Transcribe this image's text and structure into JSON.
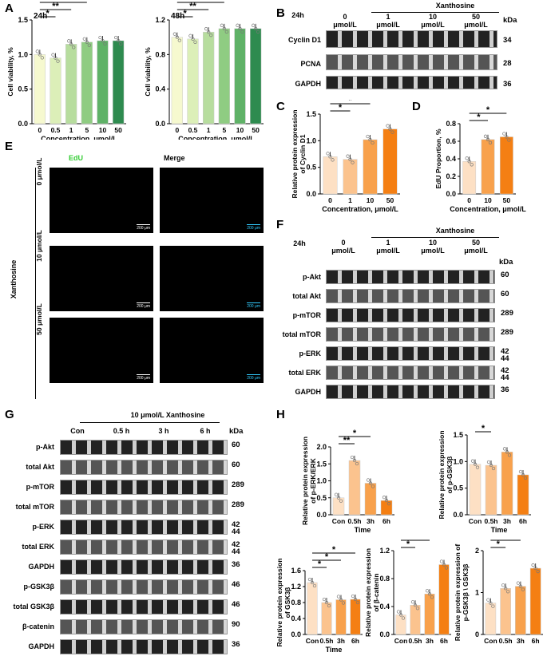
{
  "panels": {
    "A": "A",
    "B": "B",
    "C": "C",
    "D": "D",
    "E": "E",
    "F": "F",
    "G": "G",
    "H": "H"
  },
  "panelA": {
    "left_title": "24h",
    "right_title": "48h",
    "ylabel": "Cell viability, %",
    "xlabel": "Concentration, μmol/L"
  },
  "panelB": {
    "time": "24h",
    "group": "Xanthosine",
    "kda": "kDa",
    "conc": [
      "0\nμmol/L",
      "1\nμmol/L",
      "10\nμmol/L",
      "50\nμmol/L"
    ],
    "rows": [
      {
        "name": "Cyclin D1",
        "kda": "34"
      },
      {
        "name": "PCNA",
        "kda": "28"
      },
      {
        "name": "GAPDH",
        "kda": "36"
      }
    ]
  },
  "panelC": {
    "ylabel": "Relative protein expression of Cyclin D1",
    "xlabel": "Concentration, μmol/L"
  },
  "panelD": {
    "ylabel": "EdU Proportion, %",
    "xlabel": "Concentration, μmol/L"
  },
  "panelE": {
    "col1": "EdU",
    "col2": "Merge",
    "group": "Xanthosine",
    "rows": [
      "0 μmol/L",
      "10 μmol/L",
      "50 μmol/L"
    ],
    "scale": "200 μm"
  },
  "panelF": {
    "time": "24h",
    "group": "Xanthosine",
    "kda": "kDa",
    "conc": [
      "0\nμmol/L",
      "1\nμmol/L",
      "10\nμmol/L",
      "50\nμmol/L"
    ],
    "rows": [
      {
        "name": "p-Akt",
        "kda": "60"
      },
      {
        "name": "total Akt",
        "kda": "60"
      },
      {
        "name": "p-mTOR",
        "kda": "289"
      },
      {
        "name": "total mTOR",
        "kda": "289"
      },
      {
        "name": "p-ERK",
        "kda": "42\n44"
      },
      {
        "name": "total ERK",
        "kda": "42\n44"
      },
      {
        "name": "GAPDH",
        "kda": "36"
      }
    ]
  },
  "panelG": {
    "group": "10 μmol/L Xanthosine",
    "kda": "kDa",
    "times": [
      "Con",
      "0.5 h",
      "3 h",
      "6 h"
    ],
    "rows": [
      {
        "name": "p-Akt",
        "kda": "60"
      },
      {
        "name": "total Akt",
        "kda": "60"
      },
      {
        "name": "p-mTOR",
        "kda": "289"
      },
      {
        "name": "total mTOR",
        "kda": "289"
      },
      {
        "name": "p-ERK",
        "kda": "42\n44"
      },
      {
        "name": "total ERK",
        "kda": "42\n44"
      },
      {
        "name": "GAPDH",
        "kda": "36"
      },
      {
        "name": "p-GSK3β",
        "kda": "46"
      },
      {
        "name": "total GSK3β",
        "kda": "46"
      },
      {
        "name": "β-catenin",
        "kda": "90"
      },
      {
        "name": "GAPDH",
        "kda": "36"
      }
    ]
  },
  "chart_data": [
    {
      "id": "A24",
      "type": "bar",
      "title": "24h",
      "categories": [
        "0",
        "0.5",
        "1",
        "5",
        "10",
        "50"
      ],
      "values": [
        1.0,
        0.95,
        1.15,
        1.18,
        1.2,
        1.2
      ],
      "ylim": [
        0,
        1.5
      ],
      "yticks": [
        "0.0",
        "0.5",
        "1.0",
        "1.5"
      ],
      "ylabel": "Cell viability, %",
      "xlabel": "Concentration, μmol/L",
      "sig": [
        "*",
        "**",
        "***",
        "***"
      ],
      "colors": [
        "#f6f9cf",
        "#dcefb8",
        "#b7dd9e",
        "#8fcc82",
        "#5fb267",
        "#2e8b4f"
      ]
    },
    {
      "id": "A48",
      "type": "bar",
      "title": "48h",
      "categories": [
        "0",
        "0.5",
        "1",
        "5",
        "10",
        "50"
      ],
      "values": [
        1.0,
        0.98,
        1.06,
        1.1,
        1.1,
        1.1
      ],
      "ylim": [
        0,
        1.2
      ],
      "yticks": [
        "0.0",
        "0.4",
        "0.8",
        "1.2"
      ],
      "ylabel": "Cell viability, %",
      "xlabel": "Concentration, μmol/L",
      "sig": [
        "*",
        "**",
        "***",
        "***"
      ],
      "colors": [
        "#f6f9cf",
        "#dcefb8",
        "#b7dd9e",
        "#8fcc82",
        "#5fb267",
        "#2e8b4f"
      ]
    },
    {
      "id": "C",
      "type": "bar",
      "categories": [
        "0",
        "1",
        "10",
        "50"
      ],
      "values": [
        0.7,
        0.65,
        1.02,
        1.22
      ],
      "ylim": [
        0,
        1.5
      ],
      "yticks": [
        "0.0",
        "0.5",
        "1.0",
        "1.5"
      ],
      "ylabel": "Relative protein expression of Cyclin D1",
      "xlabel": "Concentration, μmol/L",
      "sig": [
        "*",
        "*"
      ],
      "colors": [
        "#fde0c4",
        "#fbc38e",
        "#f8a14c",
        "#f47f13"
      ]
    },
    {
      "id": "D",
      "type": "bar",
      "categories": [
        "0",
        "10",
        "50"
      ],
      "values": [
        0.37,
        0.62,
        0.65
      ],
      "ylim": [
        0,
        0.8
      ],
      "yticks": [
        "0.0",
        "0.2",
        "0.4",
        "0.6",
        "0.8"
      ],
      "ylabel": "EdU Proportion, %",
      "xlabel": "Concentration, μmol/L",
      "sig": [
        "*",
        "*"
      ],
      "colors": [
        "#fde0c4",
        "#f8a14c",
        "#f47f13"
      ]
    },
    {
      "id": "H1",
      "type": "bar",
      "categories": [
        "Con",
        "0.5h",
        "3h",
        "6h"
      ],
      "values": [
        0.5,
        1.6,
        0.93,
        0.42
      ],
      "ylim": [
        0,
        2.0
      ],
      "yticks": [
        "0.0",
        "0.5",
        "1.0",
        "1.5",
        "2.0"
      ],
      "ylabel": "Relative protein expression of p-ERK/ERK",
      "xlabel": "Time",
      "sig": [
        "**",
        "*"
      ],
      "colors": [
        "#fde0c4",
        "#fbc38e",
        "#f8a14c",
        "#f47f13"
      ]
    },
    {
      "id": "H2",
      "type": "bar",
      "categories": [
        "Con",
        "0.5h",
        "3h",
        "6h"
      ],
      "values": [
        0.95,
        0.93,
        1.18,
        0.75
      ],
      "ylim": [
        0,
        1.5
      ],
      "yticks": [
        "0.0",
        "0.5",
        "1.0",
        "1.5"
      ],
      "ylabel": "Relative protein expression of p-GSK3β",
      "xlabel": "Time",
      "sig": [
        "*"
      ],
      "colors": [
        "#fde0c4",
        "#fbc38e",
        "#f8a14c",
        "#f47f13"
      ]
    },
    {
      "id": "H3",
      "type": "bar",
      "categories": [
        "Con",
        "0.5h",
        "3h",
        "6h"
      ],
      "values": [
        1.3,
        0.8,
        0.87,
        0.88
      ],
      "ylim": [
        0,
        1.6
      ],
      "yticks": [
        "0.0",
        "0.4",
        "0.8",
        "1.2",
        "1.6"
      ],
      "ylabel": "Relative protein expression of GSK3β",
      "xlabel": "Time",
      "sig": [
        "*",
        "*",
        "*"
      ],
      "colors": [
        "#fde0c4",
        "#fbc38e",
        "#f8a14c",
        "#f47f13"
      ]
    },
    {
      "id": "H4",
      "type": "bar",
      "categories": [
        "Con",
        "0.5h",
        "3h",
        "6h"
      ],
      "values": [
        0.28,
        0.42,
        0.58,
        1.0
      ],
      "ylim": [
        0,
        1.2
      ],
      "yticks": [
        "0.0",
        "0.4",
        "0.8",
        "1.2"
      ],
      "ylabel": "Relative protein expression of β-catenin",
      "xlabel": "",
      "sig": [
        "*",
        "*",
        "****"
      ],
      "colors": [
        "#fde0c4",
        "#fbc38e",
        "#f8a14c",
        "#f47f13"
      ]
    },
    {
      "id": "H5",
      "type": "bar",
      "categories": [
        "Con",
        "0.5h",
        "3h",
        "6h"
      ],
      "values": [
        0.75,
        1.1,
        1.15,
        1.58
      ],
      "ylim": [
        0,
        2.0
      ],
      "yticks": [
        "0",
        "1",
        "2"
      ],
      "ylabel": "Relative protein expression of p-GSK3β \\ GSK3β",
      "xlabel": "",
      "sig": [
        "*",
        "*",
        "****"
      ],
      "colors": [
        "#fde0c4",
        "#fbc38e",
        "#f8a14c",
        "#f47f13"
      ]
    }
  ]
}
